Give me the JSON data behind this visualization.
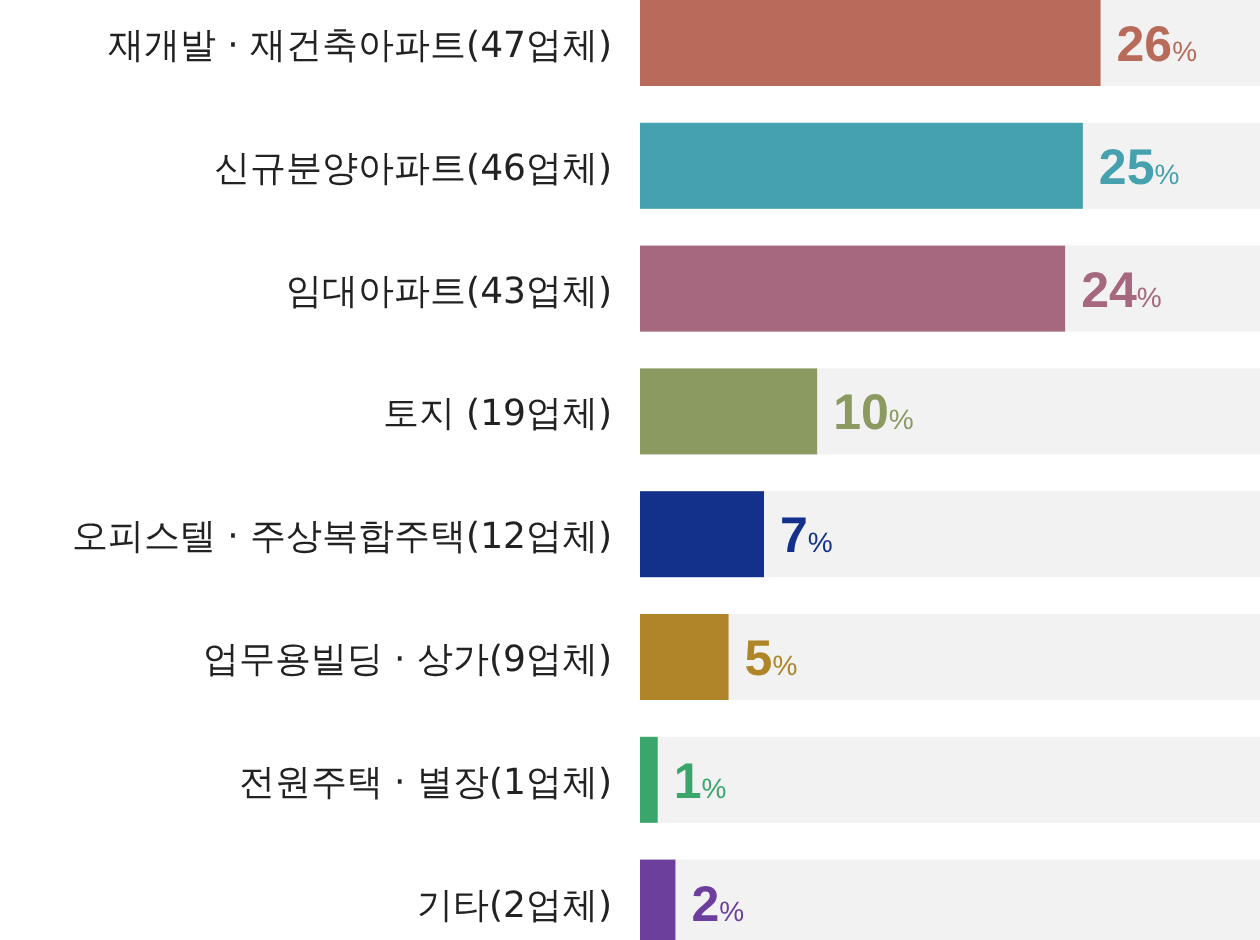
{
  "chart_data": {
    "type": "bar",
    "orientation": "horizontal",
    "categories": [
      "재개발 · 재건축아파트(47업체)",
      "신규분양아파트(46업체)",
      "임대아파트(43업체)",
      "토지 (19업체)",
      "오피스텔 · 주상복합주택(12업체)",
      "업무용빌딩 · 상가(9업체)",
      "전원주택 · 별장(1업체)",
      "기타(2업체)"
    ],
    "values": [
      26,
      25,
      24,
      10,
      7,
      5,
      1,
      2
    ],
    "colors": [
      "#b96b5b",
      "#46a1ae",
      "#a5687f",
      "#8a9a60",
      "#13318a",
      "#b0852a",
      "#3aa66c",
      "#6b3f9b"
    ],
    "value_labels": [
      "26%",
      "25%",
      "24%",
      "10%",
      "7%",
      "5%",
      "1%",
      "2%"
    ],
    "xlim": [
      0,
      35
    ]
  }
}
